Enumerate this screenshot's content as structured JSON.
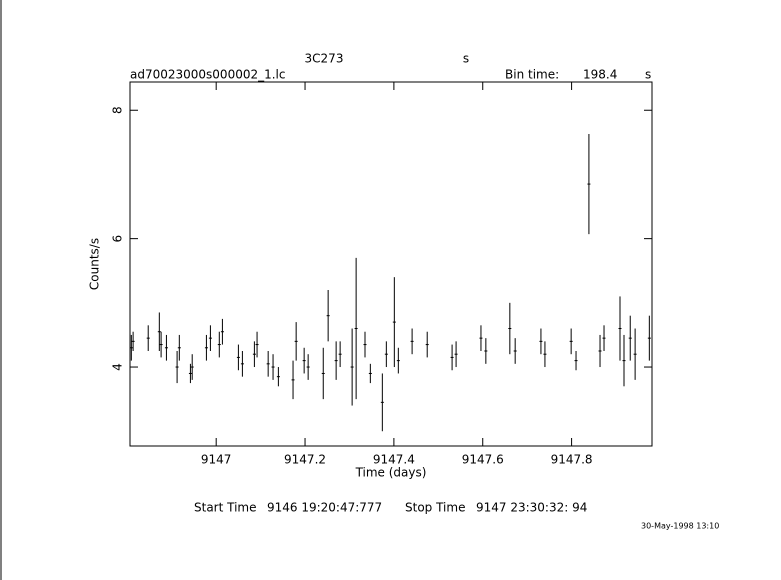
{
  "chart_data": {
    "type": "errorbar",
    "title": "3C273",
    "title_suffix": "s",
    "file_name": "ad70023000s000002_1.lc",
    "bin_time_label": "Bin time:",
    "bin_time": 198.4,
    "bin_time_unit": "s",
    "xlabel": "Time (days)",
    "ylabel": "Counts/s",
    "start_time_label": "Start Time",
    "start_time": "9146 19:20:47:777",
    "stop_time_label": "Stop Time",
    "stop_time": "9147 23:30:32: 94",
    "timestamp": "30-May-1998 13:10",
    "color": "#000000",
    "xlim": [
      9146.806,
      9147.981
    ],
    "ylim": [
      2.77,
      8.44
    ],
    "xticks": [
      9147,
      9147.2,
      9147.4,
      9147.6,
      9147.8
    ],
    "yticks": [
      4,
      6,
      8
    ],
    "x": [
      9146.809,
      9146.813,
      9146.847,
      9146.872,
      9146.876,
      9146.888,
      9146.912,
      9146.917,
      9146.942,
      9146.946,
      9146.978,
      9146.987,
      9147.007,
      9147.014,
      9147.05,
      9147.059,
      9147.086,
      9147.092,
      9147.117,
      9147.128,
      9147.14,
      9147.173,
      9147.18,
      9147.198,
      9147.207,
      9147.241,
      9147.252,
      9147.27,
      9147.279,
      9147.306,
      9147.315,
      9147.335,
      9147.347,
      9147.374,
      9147.383,
      9147.401,
      9147.41,
      9147.441,
      9147.475,
      9147.531,
      9147.54,
      9147.596,
      9147.607,
      9147.661,
      9147.673,
      9147.731,
      9147.74,
      9147.799,
      9147.81,
      9147.839,
      9147.864,
      9147.873,
      9147.909,
      9147.918,
      9147.932,
      9147.943,
      9147.975
    ],
    "values": [
      4.3,
      4.4,
      4.45,
      4.55,
      4.35,
      4.3,
      4.0,
      4.3,
      3.9,
      4.0,
      4.3,
      4.45,
      4.35,
      4.55,
      4.15,
      4.05,
      4.2,
      4.35,
      4.05,
      4.0,
      3.85,
      3.8,
      4.4,
      4.1,
      4.0,
      3.9,
      4.8,
      4.1,
      4.2,
      4.0,
      4.6,
      4.35,
      3.9,
      3.45,
      4.2,
      4.7,
      4.1,
      4.4,
      4.35,
      4.15,
      4.2,
      4.45,
      4.25,
      4.6,
      4.25,
      4.4,
      4.2,
      4.4,
      4.1,
      6.85,
      4.25,
      4.45,
      4.6,
      4.1,
      4.45,
      4.2,
      4.45
    ],
    "errors": [
      0.2,
      0.15,
      0.2,
      0.3,
      0.2,
      0.2,
      0.25,
      0.2,
      0.15,
      0.2,
      0.2,
      0.2,
      0.2,
      0.2,
      0.2,
      0.2,
      0.2,
      0.2,
      0.2,
      0.2,
      0.15,
      0.3,
      0.3,
      0.2,
      0.2,
      0.4,
      0.4,
      0.3,
      0.2,
      0.6,
      1.1,
      0.2,
      0.15,
      0.45,
      0.2,
      0.7,
      0.2,
      0.2,
      0.2,
      0.2,
      0.2,
      0.2,
      0.2,
      0.4,
      0.2,
      0.2,
      0.2,
      0.2,
      0.15,
      0.78,
      0.25,
      0.2,
      0.5,
      0.4,
      0.35,
      0.4,
      0.35
    ]
  }
}
